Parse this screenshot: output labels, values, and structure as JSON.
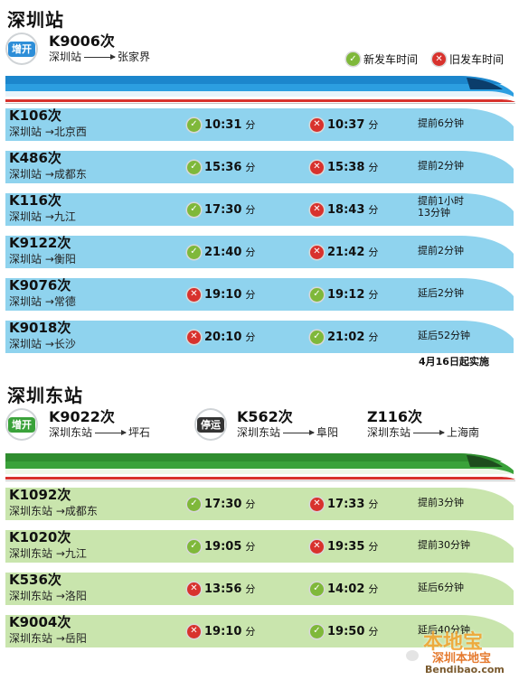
{
  "colors": {
    "blue_band": "#8fd3ee",
    "green_band": "#c9e5ad",
    "ok": "#7fb83a",
    "no": "#d8322d"
  },
  "legend": {
    "new_label": "新发车时间",
    "old_label": "旧发车时间"
  },
  "shenzhen": {
    "title": "深圳站",
    "extra_badge": "增开",
    "extra_train": {
      "code": "K9006次",
      "from": "深圳站",
      "to": "张家界"
    },
    "rows": [
      {
        "code": "K106次",
        "route": "深圳站 →北京西",
        "t1": "10:31",
        "t1_mark": "ok",
        "t2": "10:37",
        "t2_mark": "no",
        "note": "提前6分钟"
      },
      {
        "code": "K486次",
        "route": "深圳站 →成都东",
        "t1": "15:36",
        "t1_mark": "ok",
        "t2": "15:38",
        "t2_mark": "no",
        "note": "提前2分钟"
      },
      {
        "code": "K116次",
        "route": "深圳站 →九江",
        "t1": "17:30",
        "t1_mark": "ok",
        "t2": "18:43",
        "t2_mark": "no",
        "note": "提前1小时",
        "note2": "13分钟"
      },
      {
        "code": "K9122次",
        "route": "深圳站 →衡阳",
        "t1": "21:40",
        "t1_mark": "ok",
        "t2": "21:42",
        "t2_mark": "no",
        "note": "提前2分钟"
      },
      {
        "code": "K9076次",
        "route": "深圳站 →常德",
        "t1": "19:10",
        "t1_mark": "no",
        "t2": "19:12",
        "t2_mark": "ok",
        "note": "延后2分钟"
      },
      {
        "code": "K9018次",
        "route": "深圳站 →长沙",
        "t1": "20:10",
        "t1_mark": "no",
        "t2": "21:02",
        "t2_mark": "ok",
        "note": "延后52分钟"
      }
    ],
    "footnote": "4月16日起实施"
  },
  "shenzhen_east": {
    "title": "深圳东站",
    "extra_badge": "增开",
    "extra_train": {
      "code": "K9022次",
      "from": "深圳东站",
      "to": "坪石"
    },
    "stop_badge": "停运",
    "stop_train": {
      "code": "K562次",
      "from": "深圳东站",
      "to": "阜阳"
    },
    "stop_train2": {
      "code": "Z116次",
      "from": "深圳东站",
      "to": "上海南"
    },
    "rows": [
      {
        "code": "K1092次",
        "route": "深圳东站 →成都东",
        "t1": "17:30",
        "t1_mark": "ok",
        "t2": "17:33",
        "t2_mark": "no",
        "note": "提前3分钟"
      },
      {
        "code": "K1020次",
        "route": "深圳东站 →九江",
        "t1": "19:05",
        "t1_mark": "ok",
        "t2": "19:35",
        "t2_mark": "no",
        "note": "提前30分钟"
      },
      {
        "code": "K536次",
        "route": "深圳东站 →洛阳",
        "t1": "13:56",
        "t1_mark": "no",
        "t2": "14:02",
        "t2_mark": "ok",
        "note": "延后6分钟"
      },
      {
        "code": "K9004次",
        "route": "深圳东站 →岳阳",
        "t1": "19:10",
        "t1_mark": "no",
        "t2": "19:50",
        "t2_mark": "ok",
        "note": "延后40分钟"
      }
    ]
  },
  "unit_minute": "分",
  "watermark": {
    "brand": "本地宝",
    "sub": "深圳本地宝",
    "url": "Bendibao.com"
  }
}
